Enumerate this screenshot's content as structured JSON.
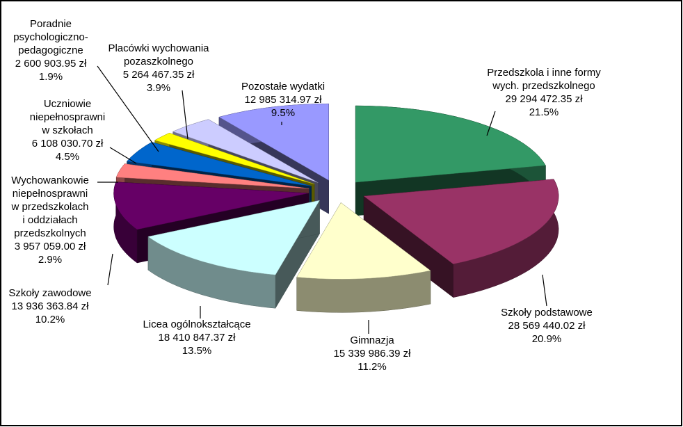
{
  "chart_data": {
    "type": "pie",
    "categories": [
      [
        "Przedszkola i inne formy",
        "wych. przedszkolnego"
      ],
      [
        "Szkoły podstawowe"
      ],
      [
        "Gimnazja"
      ],
      [
        "Licea ogólnokształcące"
      ],
      [
        "Szkoły zawodowe"
      ],
      [
        "Wychowankowie",
        "niepełnosprawni",
        "w przedszkolach",
        "i oddziałach",
        "przedszkolnych"
      ],
      [
        "Uczniowie",
        "niepełnosprawni",
        "w szkołach"
      ],
      [
        "Poradnie",
        "psychologiczno-",
        "pedagogiczne"
      ],
      [
        "Placówki wychowania",
        "pozaszkolnego"
      ],
      [
        "Pozostałe wydatki"
      ]
    ],
    "values": [
      29294472.35,
      28569440.02,
      15339986.39,
      18410847.37,
      13936363.84,
      3957059.0,
      6108030.7,
      2600903.95,
      5264467.35,
      12985314.97
    ],
    "value_labels": [
      "29 294 472.35 zł",
      "28 569 440.02 zł",
      "15 339 986.39 zł",
      "18 410 847.37 zł",
      "13 936 363.84 zł",
      "3 957 059.00 zł",
      "6 108 030.70 zł",
      "2 600 903.95 zł",
      "5 264 467.35 zł",
      "12 985 314.97 zł"
    ],
    "shares": [
      21.5,
      20.9,
      11.2,
      13.5,
      10.2,
      2.9,
      4.5,
      1.9,
      3.9,
      9.5
    ],
    "share_labels": [
      "21.5%",
      "20.9%",
      "11.2%",
      "13.5%",
      "10.2%",
      "2.9%",
      "4.5%",
      "1.9%",
      "3.9%",
      "9.5%"
    ],
    "colors": [
      "#339966",
      "#993366",
      "#ffffcc",
      "#ccffff",
      "#660066",
      "#ff8080",
      "#0066cc",
      "#ffff00",
      "#ccccff",
      "#9999ff"
    ]
  }
}
